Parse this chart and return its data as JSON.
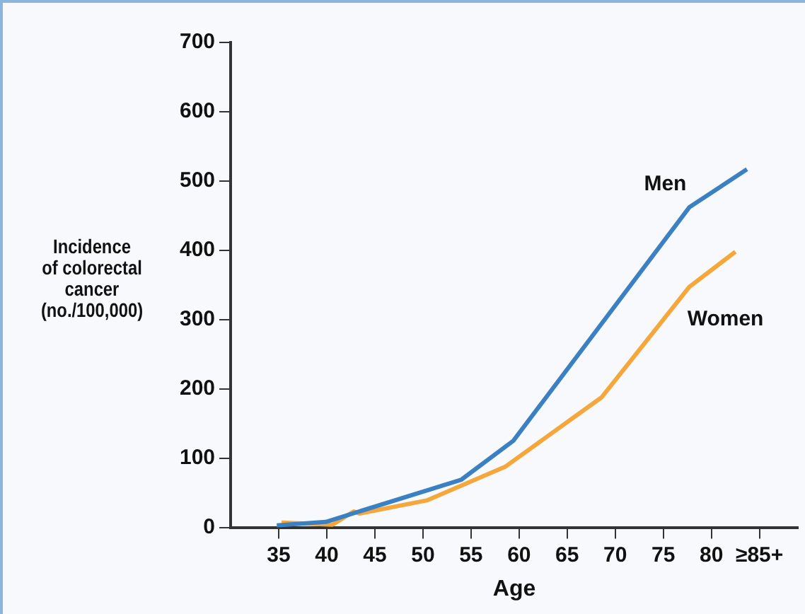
{
  "chart_data": {
    "type": "line",
    "xlabel": "Age",
    "ylabel": "Incidence\nof colorectal\ncancer\n(no./100,000)",
    "xlim": [
      30,
      89
    ],
    "xticks": [
      35,
      40,
      45,
      50,
      55,
      60,
      65,
      70,
      75,
      80,
      {
        "value": 85,
        "label": "≥85+"
      }
    ],
    "ylim": [
      0,
      700
    ],
    "yticks": [
      0,
      100,
      200,
      300,
      400,
      500,
      600,
      700
    ],
    "grid": false,
    "legend": false,
    "marker": "none",
    "line_style": "solid",
    "series": [
      {
        "name": "Men",
        "color": "#3a80c3",
        "x": [
          34.8,
          39.9,
          54.0,
          59.4,
          77.7,
          83.7
        ],
        "values": [
          3,
          8,
          69,
          125,
          462,
          517
        ]
      },
      {
        "name": "Women",
        "color": "#f5a73b",
        "x": [
          35.3,
          40.6,
          42.8,
          43.4,
          50.4,
          58.6,
          68.6,
          77.7,
          82.5
        ],
        "values": [
          7,
          4,
          23,
          20,
          39,
          88,
          188,
          347,
          398
        ]
      }
    ]
  }
}
